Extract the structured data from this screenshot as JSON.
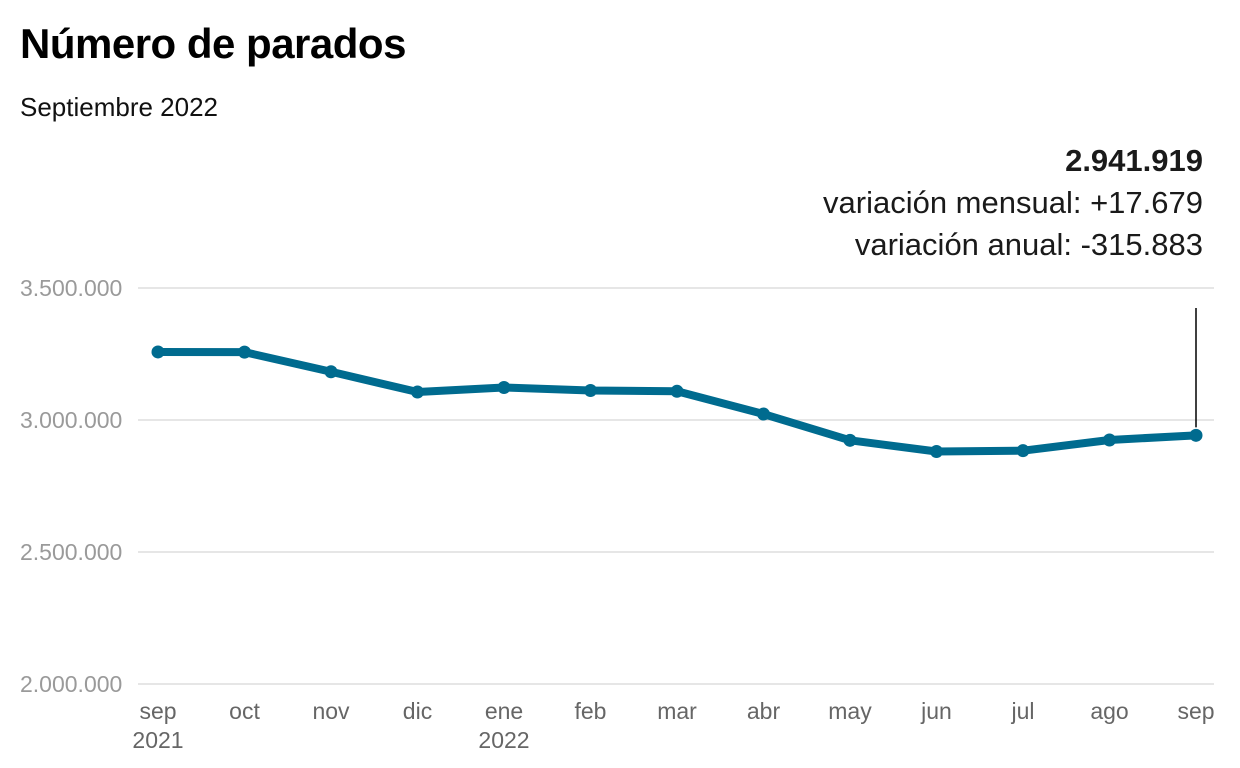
{
  "chart_data": {
    "type": "line",
    "title": "Número de parados",
    "subtitle": "Septiembre 2022",
    "categories": [
      "sep",
      "oct",
      "nov",
      "dic",
      "ene",
      "feb",
      "mar",
      "abr",
      "may",
      "jun",
      "jul",
      "ago",
      "sep"
    ],
    "year_labels": [
      "2021",
      "",
      "",
      "",
      "2022",
      "",
      "",
      "",
      "",
      "",
      "",
      "",
      ""
    ],
    "series": [
      {
        "name": "Número de parados",
        "color": "#006b8f",
        "values": [
          3257802,
          3257068,
          3182687,
          3105905,
          3123078,
          3111684,
          3108763,
          3022503,
          2922991,
          2880582,
          2883812,
          2924240,
          2941919
        ]
      }
    ],
    "ylim": [
      2000000,
      3500000
    ],
    "yticks": [
      3500000,
      3000000,
      2500000,
      2000000
    ],
    "ytick_labels": [
      "3.500.000",
      "3.000.000",
      "2.500.000",
      "2.000.000"
    ],
    "xlabel": "",
    "ylabel": "",
    "grid": true,
    "annotation": {
      "value": "2.941.919",
      "line1": "variación mensual: +17.679",
      "line2": "variación anual: -315.883"
    }
  }
}
